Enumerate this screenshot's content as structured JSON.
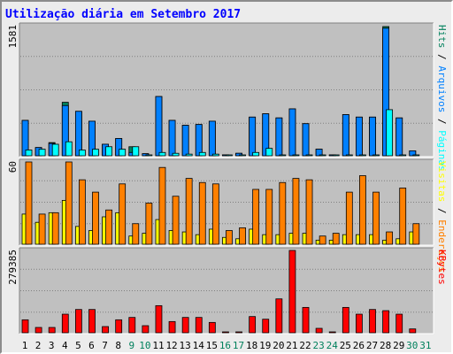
{
  "chart_data": {
    "type": "bar",
    "title": "Utilização diária em Setembro 2017",
    "x": [
      "1",
      "2",
      "3",
      "4",
      "5",
      "6",
      "7",
      "8",
      "9",
      "10",
      "11",
      "12",
      "13",
      "14",
      "15",
      "16",
      "17",
      "18",
      "19",
      "20",
      "21",
      "22",
      "23",
      "24",
      "25",
      "26",
      "27",
      "28",
      "29",
      "30",
      "31"
    ],
    "weekend_days": [
      "9",
      "10",
      "16",
      "17",
      "23",
      "24",
      "30",
      "31"
    ],
    "panels": [
      {
        "id": "hits",
        "ymax": 1581,
        "ymax_label": "1581",
        "side_label_parts": [
          {
            "text": "Páginas",
            "color": "#00ffff"
          },
          {
            "text": " / ",
            "color": "#000000"
          },
          {
            "text": "Arquivos",
            "color": "#0080ff"
          },
          {
            "text": " / ",
            "color": "#000000"
          },
          {
            "text": "Hits",
            "color": "#00805c"
          }
        ],
        "series": [
          {
            "name": "Hits",
            "color": "#00805c",
            "offset": 0,
            "values": [
              430,
              100,
              160,
              650,
              540,
              420,
              140,
              210,
              110,
              25,
              720,
              430,
              370,
              380,
              420,
              10,
              30,
              470,
              510,
              460,
              570,
              390,
              80,
              10,
              500,
              470,
              470,
              1570,
              460,
              60,
              0
            ]
          },
          {
            "name": "Arquivos",
            "color": "#0080ff",
            "offset": 0,
            "values": [
              430,
              100,
              150,
              610,
              540,
              420,
              140,
              210,
              40,
              25,
              720,
              430,
              370,
              380,
              420,
              10,
              30,
              470,
              510,
              460,
              570,
              390,
              80,
              10,
              500,
              470,
              470,
              1550,
              460,
              60,
              0
            ]
          },
          {
            "name": "Páginas",
            "color": "#00ffff",
            "offset": 1,
            "values": [
              70,
              80,
              140,
              170,
              70,
              80,
              110,
              80,
              110,
              5,
              40,
              30,
              20,
              40,
              20,
              5,
              5,
              40,
              90,
              10,
              10,
              5,
              5,
              5,
              10,
              5,
              5,
              560,
              5,
              5,
              0
            ]
          }
        ]
      },
      {
        "id": "visits",
        "ymax": 60,
        "ymax_label": "60",
        "side_label_parts": [
          {
            "text": "Endereços",
            "color": "#ff8000"
          },
          {
            "text": " / ",
            "color": "#000000"
          },
          {
            "text": "Visitas",
            "color": "#ffff00"
          }
        ],
        "series": [
          {
            "name": "Visitas",
            "color": "#ffff00",
            "offset": 0,
            "values": [
              22,
              16,
              23,
              32,
              13,
              10,
              20,
              23,
              6,
              8,
              18,
              10,
              9,
              7,
              11,
              5,
              4,
              11,
              7,
              7,
              8,
              8,
              3,
              3,
              7,
              7,
              7,
              3,
              4,
              9,
              0
            ]
          },
          {
            "name": "Endereços",
            "color": "#ff8000",
            "offset": 1,
            "values": [
              60,
              22,
              23,
              60,
              47,
              38,
              25,
              44,
              15,
              30,
              56,
              35,
              48,
              45,
              44,
              10,
              12,
              40,
              40,
              45,
              48,
              47,
              6,
              8,
              38,
              50,
              38,
              9,
              41,
              15,
              0
            ]
          }
        ]
      },
      {
        "id": "kbytes",
        "ymax": 279385,
        "ymax_label": "279385",
        "side_label_parts": [
          {
            "text": "KBytes",
            "color": "#ff0000"
          }
        ],
        "series": [
          {
            "name": "KBytes",
            "color": "#ff0000",
            "offset": 0,
            "values": [
              44000,
              18000,
              18000,
              63000,
              79000,
              79000,
              21000,
              44000,
              52000,
              24000,
              92000,
              38000,
              52000,
              52000,
              35000,
              2000,
              2000,
              55000,
              46000,
              115000,
              279385,
              86000,
              15000,
              3000,
              86000,
              63000,
              79000,
              75000,
              63000,
              13000,
              0
            ]
          }
        ]
      }
    ]
  }
}
